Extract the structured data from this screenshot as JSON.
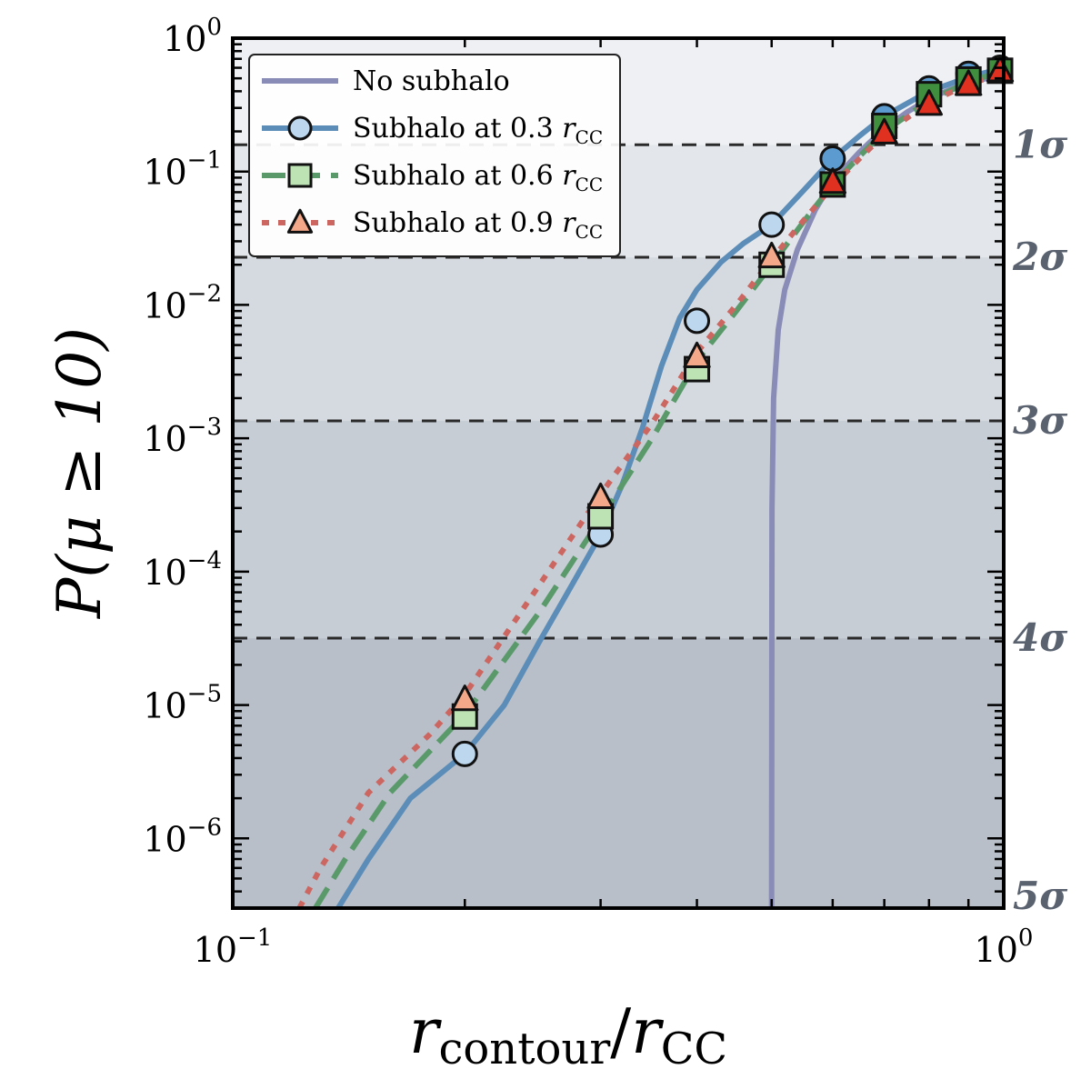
{
  "chart_data": {
    "type": "line",
    "xscale": "log",
    "yscale": "log",
    "xlim": [
      0.1,
      1.0
    ],
    "ylim": [
      3e-07,
      1.0
    ],
    "xlabel": {
      "main": "r",
      "sub1": "contour",
      "slash": "/",
      "main2": "r",
      "sub2": "CC"
    },
    "ylabel": "P(μ ≥ 10)",
    "x_ticks": [
      {
        "value": 0.1,
        "base": "10",
        "exp": "−1"
      },
      {
        "value": 1.0,
        "base": "10",
        "exp": "0"
      }
    ],
    "y_ticks": [
      {
        "value": 1.0,
        "base": "10",
        "exp": "0"
      },
      {
        "value": 0.1,
        "base": "10",
        "exp": "−1"
      },
      {
        "value": 0.01,
        "base": "10",
        "exp": "−2"
      },
      {
        "value": 0.001,
        "base": "10",
        "exp": "−3"
      },
      {
        "value": 0.0001,
        "base": "10",
        "exp": "−4"
      },
      {
        "value": 1e-05,
        "base": "10",
        "exp": "−5"
      },
      {
        "value": 1e-06,
        "base": "10",
        "exp": "−6"
      }
    ],
    "sigma_levels": [
      {
        "label": "1σ",
        "value": 0.1587
      },
      {
        "label": "2σ",
        "value": 0.02275
      },
      {
        "label": "3σ",
        "value": 0.00135
      },
      {
        "label": "4σ",
        "value": 3.17e-05
      },
      {
        "label": "5σ",
        "value": 2.87e-07
      }
    ],
    "background_bands": [
      "#eef0f3",
      "#e3e7eb",
      "#d5dae0",
      "#c7cdd5",
      "#b8bfc9"
    ],
    "series": [
      {
        "name": "No subhalo",
        "legend": {
          "text": "No subhalo",
          "sub": ""
        },
        "color": "#8a8cb8",
        "style": "solid",
        "curve": [
          [
            0.5,
            3e-07
          ],
          [
            0.5005,
            0.0003
          ],
          [
            0.503,
            0.002
          ],
          [
            0.51,
            0.0065
          ],
          [
            0.52,
            0.013
          ],
          [
            0.54,
            0.026
          ],
          [
            0.57,
            0.052
          ],
          [
            0.6,
            0.085
          ],
          [
            0.65,
            0.14
          ],
          [
            0.7,
            0.21
          ],
          [
            0.75,
            0.28
          ],
          [
            0.8,
            0.35
          ],
          [
            0.85,
            0.41
          ],
          [
            0.9,
            0.46
          ],
          [
            0.95,
            0.5
          ],
          [
            1.0,
            0.53
          ]
        ],
        "markers": []
      },
      {
        "name": "Subhalo at 0.3 r_CC",
        "legend": {
          "text": "Subhalo at 0.3 ",
          "sub": "CC"
        },
        "color": "#5b8db8",
        "marker_fill": "#bcd7ee",
        "marker_fill_dark": "#5b9bd0",
        "marker": "circle",
        "style": "solid",
        "curve": [
          [
            0.137,
            3e-07
          ],
          [
            0.15,
            7e-07
          ],
          [
            0.17,
            2e-06
          ],
          [
            0.2,
            4.3e-06
          ],
          [
            0.225,
            1e-05
          ],
          [
            0.25,
            3e-05
          ],
          [
            0.27,
            6.5e-05
          ],
          [
            0.3,
            0.00019
          ],
          [
            0.32,
            0.00045
          ],
          [
            0.34,
            0.0012
          ],
          [
            0.36,
            0.0035
          ],
          [
            0.38,
            0.008
          ],
          [
            0.4,
            0.013
          ],
          [
            0.43,
            0.021
          ],
          [
            0.46,
            0.029
          ],
          [
            0.5,
            0.04
          ],
          [
            0.55,
            0.072
          ],
          [
            0.6,
            0.125
          ],
          [
            0.65,
            0.185
          ],
          [
            0.7,
            0.26
          ],
          [
            0.8,
            0.4
          ],
          [
            0.9,
            0.51
          ],
          [
            1.0,
            0.6
          ]
        ],
        "markers": [
          [
            0.2,
            4.3e-06
          ],
          [
            0.3,
            0.00019
          ],
          [
            0.4,
            0.0076
          ],
          [
            0.5,
            0.04
          ],
          [
            0.6,
            0.125
          ],
          [
            0.7,
            0.26
          ],
          [
            0.8,
            0.42
          ],
          [
            0.9,
            0.54
          ],
          [
            1.0,
            0.6
          ]
        ]
      },
      {
        "name": "Subhalo at 0.6 r_CC",
        "legend": {
          "text": "Subhalo at 0.6 ",
          "sub": "CC"
        },
        "color": "#5a9a6a",
        "marker_fill": "#bde3b5",
        "marker_fill_dark": "#3f8f3f",
        "marker": "square",
        "style": "dashed",
        "curve": [
          [
            0.128,
            3e-07
          ],
          [
            0.14,
            7e-07
          ],
          [
            0.16,
            2.2e-06
          ],
          [
            0.18,
            4.5e-06
          ],
          [
            0.2,
            8.5e-06
          ],
          [
            0.25,
            5e-05
          ],
          [
            0.3,
            0.00025
          ],
          [
            0.35,
            0.001
          ],
          [
            0.4,
            0.0038
          ],
          [
            0.45,
            0.009
          ],
          [
            0.5,
            0.02
          ],
          [
            0.55,
            0.042
          ],
          [
            0.6,
            0.08
          ],
          [
            0.65,
            0.13
          ],
          [
            0.7,
            0.2
          ],
          [
            0.8,
            0.34
          ],
          [
            0.9,
            0.47
          ],
          [
            1.0,
            0.57
          ]
        ],
        "markers": [
          [
            0.2,
            8.2e-06
          ],
          [
            0.3,
            0.00026
          ],
          [
            0.4,
            0.0033
          ],
          [
            0.5,
            0.02
          ],
          [
            0.6,
            0.08
          ],
          [
            0.7,
            0.22
          ],
          [
            0.8,
            0.38
          ],
          [
            0.9,
            0.49
          ],
          [
            1.0,
            0.57
          ]
        ]
      },
      {
        "name": "Subhalo at 0.9 r_CC",
        "legend": {
          "text": "Subhalo at 0.9 ",
          "sub": "CC"
        },
        "color": "#cc6660",
        "marker_fill": "#f4a88a",
        "marker_fill_dark": "#e03020",
        "marker": "triangle",
        "style": "dotted",
        "curve": [
          [
            0.122,
            3e-07
          ],
          [
            0.13,
            6e-07
          ],
          [
            0.15,
            2.2e-06
          ],
          [
            0.18,
            6e-06
          ],
          [
            0.2,
            1.2e-05
          ],
          [
            0.25,
            8e-05
          ],
          [
            0.3,
            0.00038
          ],
          [
            0.35,
            0.0013
          ],
          [
            0.4,
            0.0044
          ],
          [
            0.45,
            0.01
          ],
          [
            0.5,
            0.022
          ],
          [
            0.55,
            0.043
          ],
          [
            0.6,
            0.078
          ],
          [
            0.65,
            0.125
          ],
          [
            0.7,
            0.19
          ],
          [
            0.8,
            0.33
          ],
          [
            0.9,
            0.45
          ],
          [
            1.0,
            0.55
          ]
        ],
        "markers": [
          [
            0.2,
            1.1e-05
          ],
          [
            0.3,
            0.00036
          ],
          [
            0.4,
            0.0041
          ],
          [
            0.5,
            0.023
          ],
          [
            0.6,
            0.083
          ],
          [
            0.7,
            0.195
          ],
          [
            0.8,
            0.32
          ],
          [
            0.9,
            0.45
          ],
          [
            1.0,
            0.57
          ]
        ]
      }
    ]
  }
}
